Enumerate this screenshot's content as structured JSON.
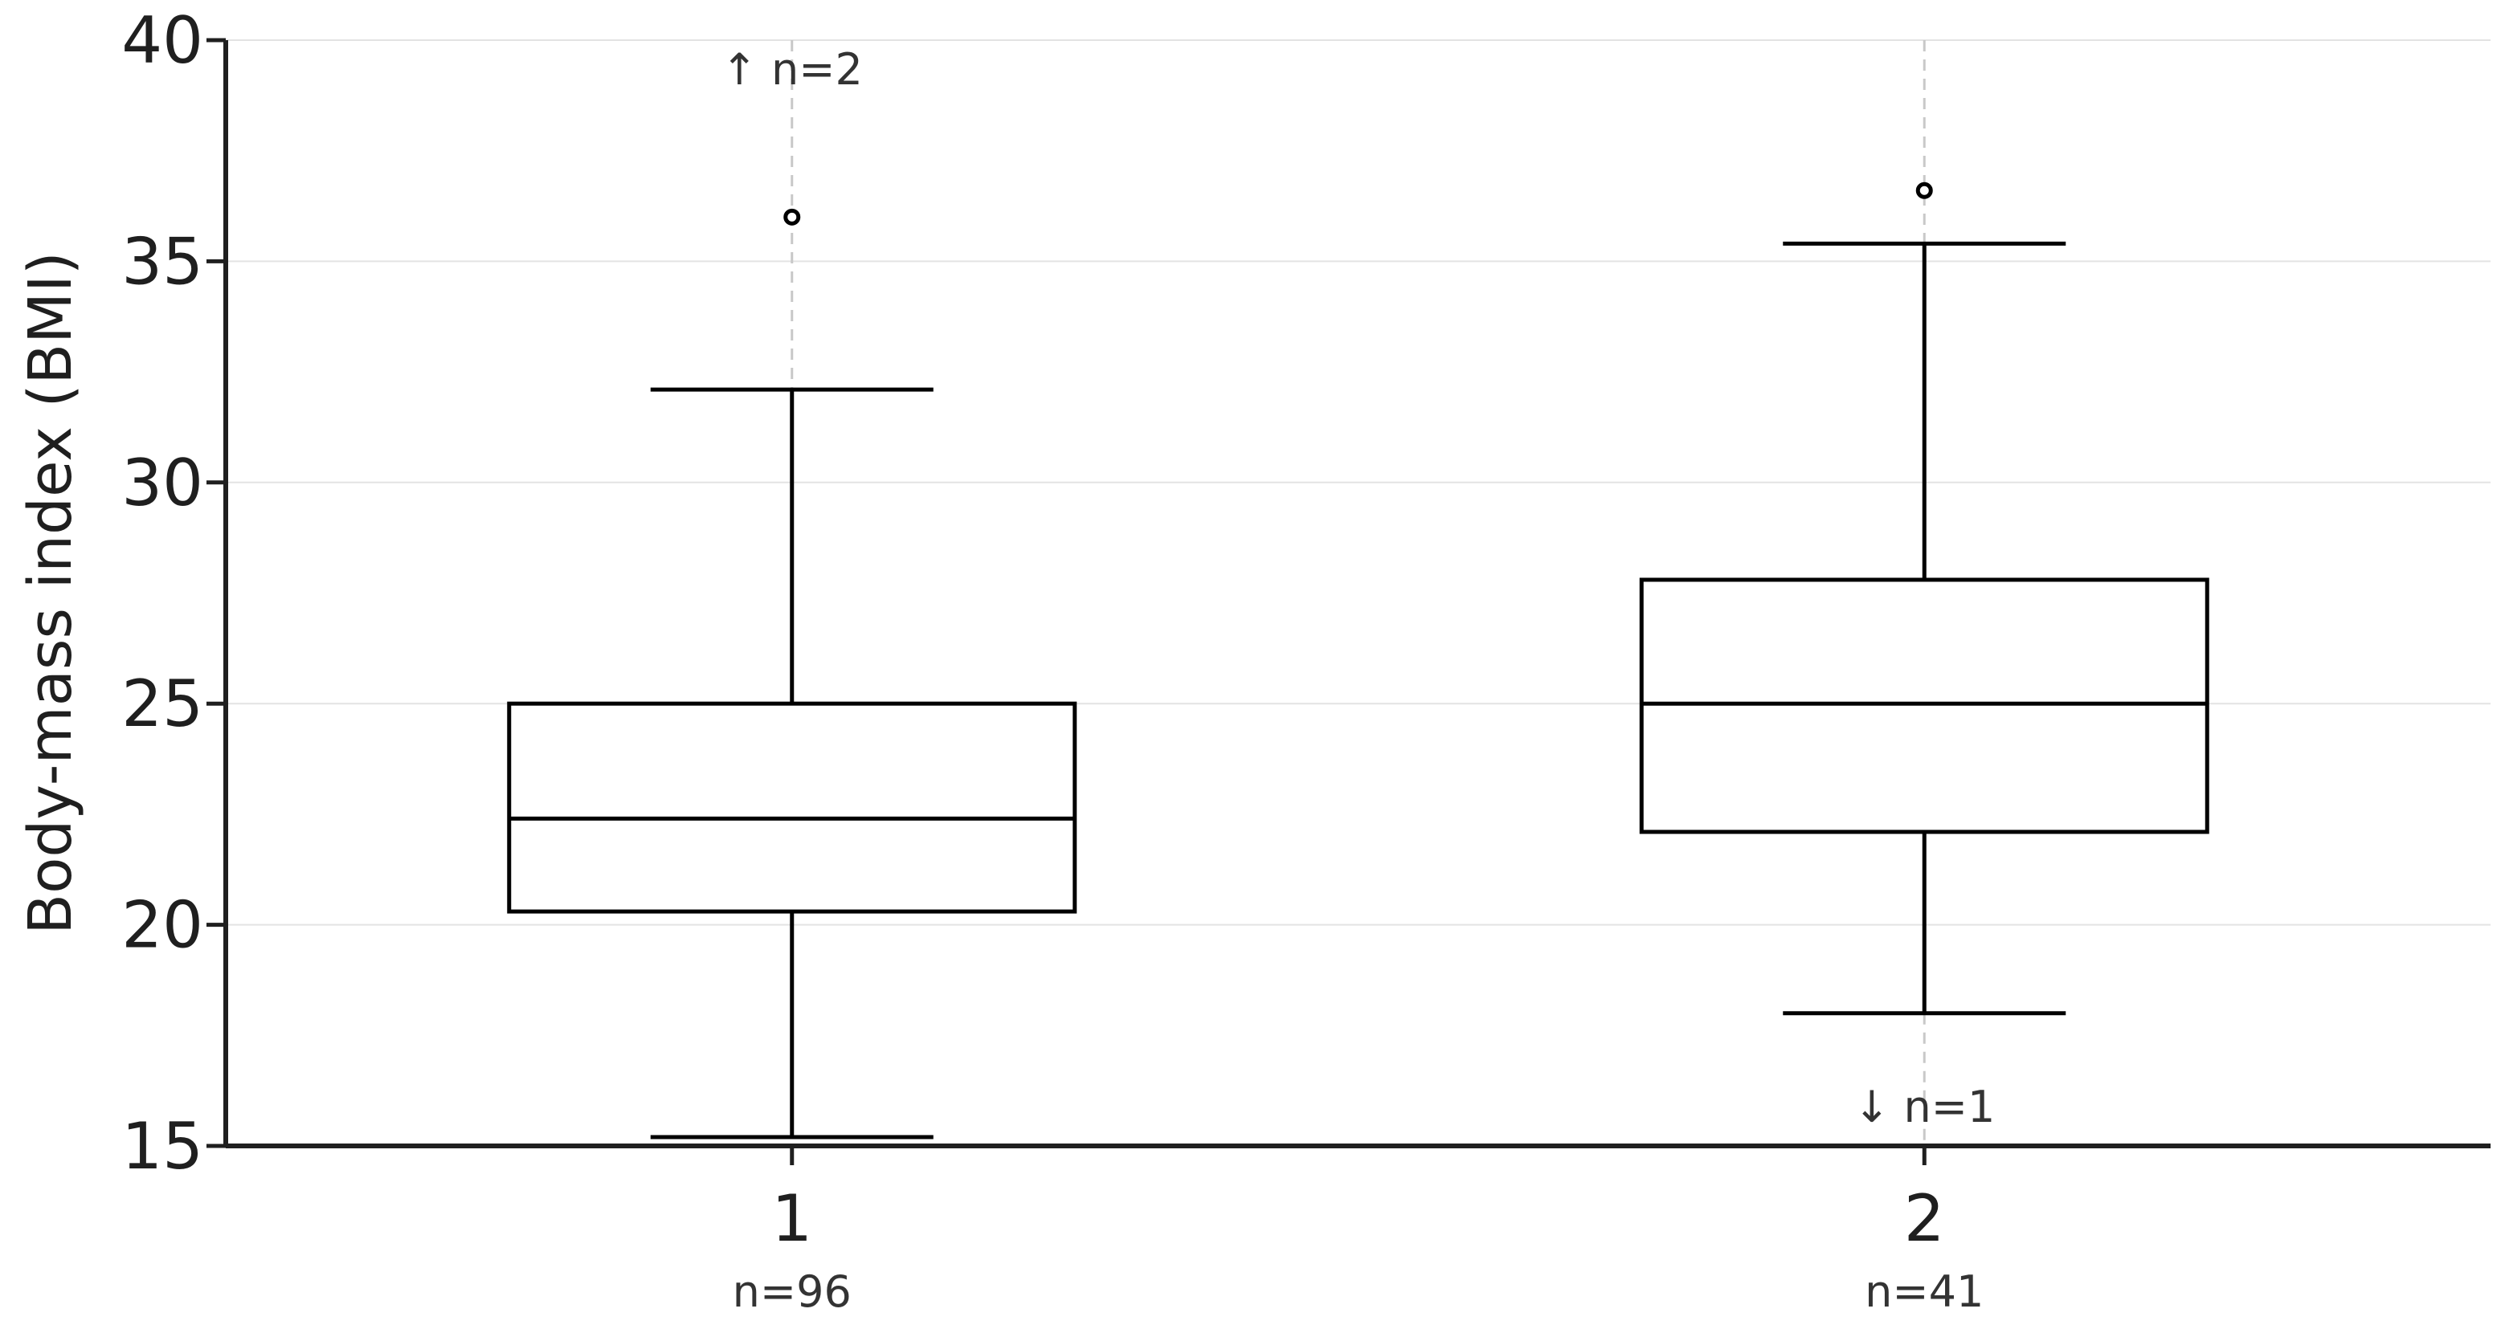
{
  "chart_data": {
    "type": "box",
    "ylabel": "Body-mass index (BMI)",
    "xlabel": "",
    "ylim": [
      15,
      40
    ],
    "yticks": [
      "15",
      "20",
      "25",
      "30",
      "35",
      "40"
    ],
    "grid": "horizontal",
    "colors": {
      "axis": "#1f1f1f",
      "box": "#000000",
      "grid": "#e3e3e3",
      "guide": "#c8c8c8"
    },
    "groups": [
      {
        "label": "1",
        "count_label": "n=96",
        "whisker_low": 15.2,
        "q1": 20.3,
        "median": 22.4,
        "q3": 25.0,
        "whisker_high": 32.1,
        "outliers": [
          36.0
        ],
        "clipped_annotation": {
          "text": "↑ n=2",
          "direction": "up"
        }
      },
      {
        "label": "2",
        "count_label": "n=41",
        "whisker_low": 18.0,
        "q1": 22.1,
        "median": 25.0,
        "q3": 27.8,
        "whisker_high": 35.4,
        "outliers": [
          36.6
        ],
        "clipped_annotation": {
          "text": "↓ n=1",
          "direction": "down"
        }
      }
    ]
  }
}
